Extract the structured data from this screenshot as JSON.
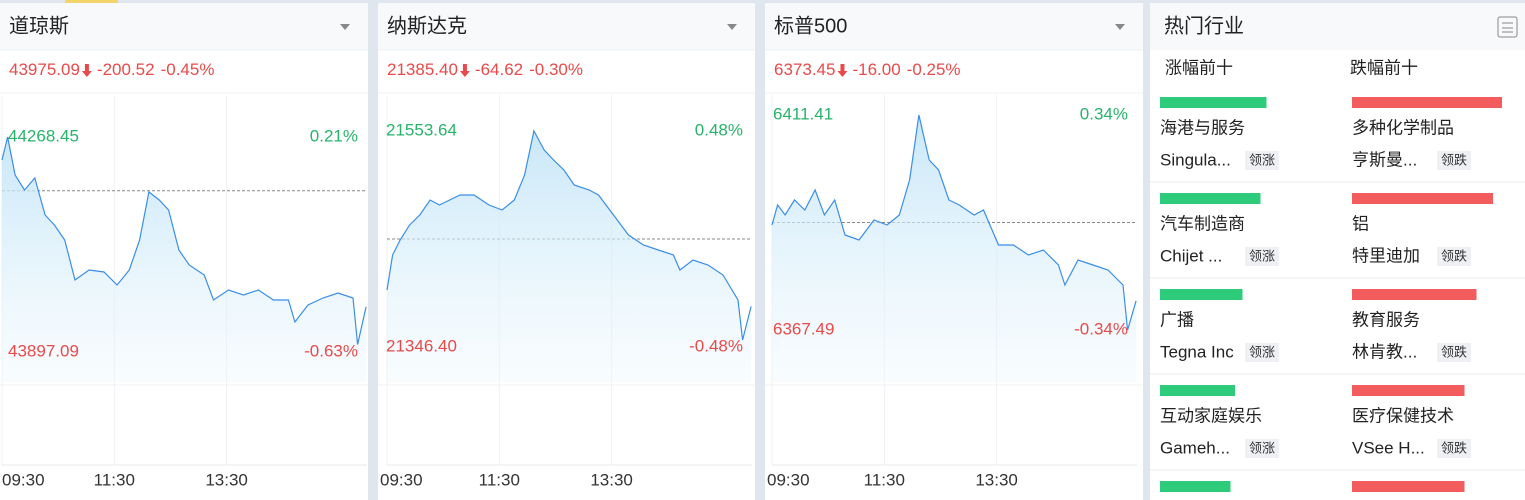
{
  "indices": [
    {
      "name": "道琼斯",
      "price": "43975.09",
      "change": "-200.52",
      "pct": "-0.45%",
      "prev_close": 44175.61,
      "ylim": [
        43897.09,
        44268.45
      ],
      "yticks": [
        43897.09,
        44268.45
      ],
      "pct_labels": [
        "-0.63%",
        "0.21%"
      ],
      "values": [
        44228.7,
        44268.45,
        44202.8,
        44176.9,
        44197.6,
        44133.7,
        44116.4,
        44090.5,
        44021.4,
        44038.7,
        44035.3,
        44012.8,
        44038.7,
        44090.5,
        44173.4,
        44159.6,
        44142.3,
        44073.3,
        44047.3,
        44030.1,
        43986.9,
        44004.2,
        43995.5,
        44004.2,
        43986.9,
        43986.9,
        43948.9,
        43978.3,
        43990.4,
        43999.0,
        43990.4,
        43910.0,
        43975.09
      ]
    },
    {
      "name": "纳斯达克",
      "price": "21385.40",
      "change": "-64.62",
      "pct": "-0.30%",
      "prev_close": 21450.02,
      "ylim": [
        21346.4,
        21553.64
      ],
      "yticks": [
        {
          "value": 21346.4,
          "label": "21346.40"
        },
        21553.64
      ],
      "pct_labels": [
        "-0.48%",
        "0.48%"
      ],
      "values": [
        21401.1,
        21434.7,
        21449.1,
        21463.4,
        21473.0,
        21487.4,
        21482.6,
        21487.4,
        21492.2,
        21492.2,
        21482.6,
        21477.8,
        21487.4,
        21511.4,
        21553.64,
        21535.4,
        21525.8,
        21516.2,
        21501.8,
        21497.0,
        21492.2,
        21473.0,
        21453.9,
        21444.3,
        21439.5,
        21434.7,
        21420.3,
        21429.9,
        21425.1,
        21415.5,
        21391.5,
        21353.1,
        21385.4
      ]
    },
    {
      "name": "标普500",
      "price": "6373.45",
      "change": "-16.00",
      "pct": "-0.25%",
      "prev_close": 6389.45,
      "ylim": [
        6367.49,
        6411.41
      ],
      "yticks": [
        6367.49,
        6411.41
      ],
      "pct_labels": [
        "-0.34%",
        "0.34%"
      ],
      "values": [
        6388.94,
        6393.03,
        6390.98,
        6394.05,
        6392.01,
        6396.09,
        6390.98,
        6394.05,
        6386.9,
        6385.88,
        6389.96,
        6388.94,
        6390.98,
        6398.14,
        6411.41,
        6402.22,
        6400.18,
        6394.05,
        6393.03,
        6390.98,
        6392.01,
        6384.86,
        6384.86,
        6382.81,
        6383.83,
        6380.77,
        6376.68,
        6381.79,
        6380.77,
        6379.75,
        6376.68,
        6367.49,
        6373.45
      ]
    }
  ],
  "time_axis": {
    "xlim": [
      0,
      390
    ],
    "xticks": [
      {
        "value": 0,
        "label": "09:30"
      },
      {
        "value": 120,
        "label": "11:30"
      },
      {
        "value": 240,
        "label": "13:30"
      }
    ],
    "x": [
      0,
      6,
      14,
      24,
      35,
      46,
      56,
      67,
      78,
      93,
      109,
      123,
      136,
      147,
      157,
      168,
      178,
      189,
      200,
      216,
      226,
      242,
      258,
      274,
      290,
      306,
      313,
      327,
      343,
      359,
      375,
      380,
      389
    ]
  },
  "hot": {
    "title": "热门行业",
    "gainers_header": "涨幅前十",
    "losers_header": "跌幅前十",
    "bar_lim": [
      0,
      100
    ],
    "rows": [
      {
        "gainer": {
          "bar": 71,
          "sector": "海港与服务",
          "stock": "Singula...",
          "tag": "领涨"
        },
        "loser": {
          "bar": 100,
          "sector": "多种化学制品",
          "stock": "亨斯曼...",
          "tag": "领跌"
        }
      },
      {
        "gainer": {
          "bar": 67,
          "sector": "汽车制造商",
          "stock": "Chijet ...",
          "tag": "领涨"
        },
        "loser": {
          "bar": 94,
          "sector": "铝",
          "stock": "特里迪加",
          "tag": "领跌"
        }
      },
      {
        "gainer": {
          "bar": 55,
          "sector": "广播",
          "stock": "Tegna Inc",
          "tag": "领涨"
        },
        "loser": {
          "bar": 83,
          "sector": "教育服务",
          "stock": "林肯教...",
          "tag": "领跌"
        }
      },
      {
        "gainer": {
          "bar": 50,
          "sector": "互动家庭娱乐",
          "stock": "Gameh...",
          "tag": "领涨"
        },
        "loser": {
          "bar": 75,
          "sector": "医疗保健技术",
          "stock": "VSee H...",
          "tag": "领跌"
        }
      },
      {
        "gainer": {
          "bar": 47
        },
        "loser": {
          "bar": 75
        }
      }
    ]
  }
}
